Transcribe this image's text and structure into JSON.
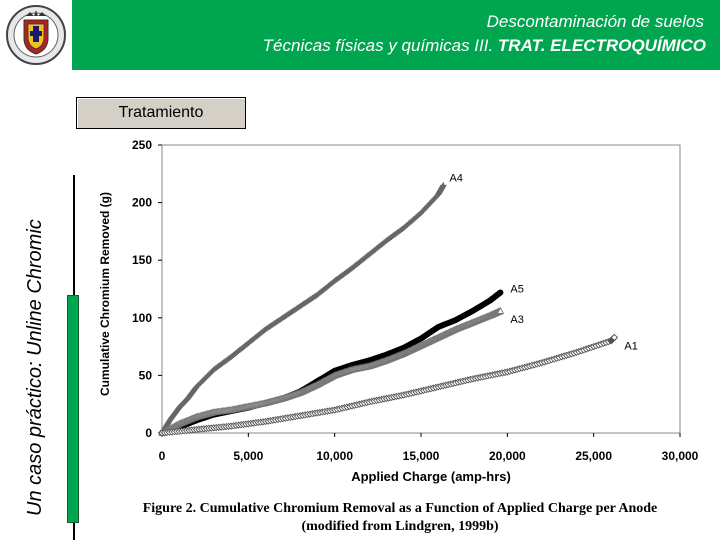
{
  "header": {
    "title_line1": "Descontaminación de suelos",
    "title_line2_prefix": "Técnicas físicas y químicas III.",
    "title_line2_bold": "TRAT. ELECTROQUÍMICO",
    "logo_icon": "university-seal-icon",
    "background_color": "#00a54f"
  },
  "sidebar": {
    "vertical_text": "Un caso práctico: Unline Chromic"
  },
  "button": {
    "label": "Tratamiento"
  },
  "caption": {
    "line1": "Figure 2.  Cumulative Chromium Removal as a Function of Applied Charge per Anode",
    "line2": "(modified from Lindgren, 1999b)"
  },
  "chart_data": {
    "type": "scatter",
    "xlabel": "Applied Charge (amp-hrs)",
    "ylabel": "Cumulative Chromium Removed (g)",
    "xlim": [
      0,
      30000
    ],
    "ylim": [
      0,
      250
    ],
    "xticks": [
      0,
      5000,
      10000,
      15000,
      20000,
      25000,
      30000
    ],
    "xtick_labels": [
      "0",
      "5,000",
      "10,000",
      "15,000",
      "20,000",
      "25,000",
      "30,000"
    ],
    "yticks": [
      0,
      50,
      100,
      150,
      200,
      250
    ],
    "ytick_labels": [
      "0",
      "50",
      "100",
      "150",
      "200",
      "250"
    ],
    "grid": false,
    "series": [
      {
        "name": "A4",
        "marker": "plus",
        "color": "#666666",
        "x": [
          0,
          500,
          1000,
          1500,
          2000,
          3000,
          4000,
          5000,
          6000,
          7000,
          8000,
          9000,
          10000,
          11000,
          12000,
          13000,
          14000,
          15000,
          16000,
          16300
        ],
        "y": [
          0,
          12,
          22,
          30,
          40,
          55,
          66,
          78,
          90,
          100,
          110,
          120,
          132,
          143,
          155,
          167,
          178,
          191,
          207,
          215
        ]
      },
      {
        "name": "A5",
        "marker": "dot",
        "color": "#000000",
        "x": [
          0,
          1000,
          2000,
          3000,
          4000,
          5000,
          6000,
          7000,
          8000,
          9000,
          10000,
          11000,
          12000,
          13000,
          14000,
          15000,
          16000,
          17000,
          18000,
          19000,
          19600
        ],
        "y": [
          0,
          5,
          11,
          16,
          19,
          22,
          26,
          30,
          36,
          45,
          54,
          59,
          63,
          68,
          74,
          82,
          92,
          98,
          106,
          115,
          122
        ]
      },
      {
        "name": "A3",
        "marker": "triangle",
        "color": "#777777",
        "x": [
          0,
          1000,
          2000,
          3000,
          4000,
          5000,
          6000,
          7000,
          8000,
          9000,
          10000,
          11000,
          12000,
          13000,
          14000,
          15000,
          16000,
          17000,
          18000,
          19000,
          19600
        ],
        "y": [
          0,
          8,
          14,
          18,
          20,
          23,
          26,
          30,
          35,
          42,
          50,
          55,
          58,
          63,
          69,
          76,
          83,
          90,
          96,
          102,
          106
        ]
      },
      {
        "name": "A1",
        "marker": "diamond",
        "color": "#555555",
        "x": [
          0,
          2000,
          4000,
          6000,
          8000,
          10000,
          12000,
          14000,
          16000,
          18000,
          20000,
          22000,
          24000,
          26000,
          26200
        ],
        "y": [
          0,
          3,
          6,
          10,
          15,
          20,
          27,
          33,
          40,
          47,
          53,
          61,
          70,
          80,
          83
        ]
      }
    ],
    "annotations": [
      "A4",
      "A5",
      "A3",
      "A1"
    ]
  }
}
